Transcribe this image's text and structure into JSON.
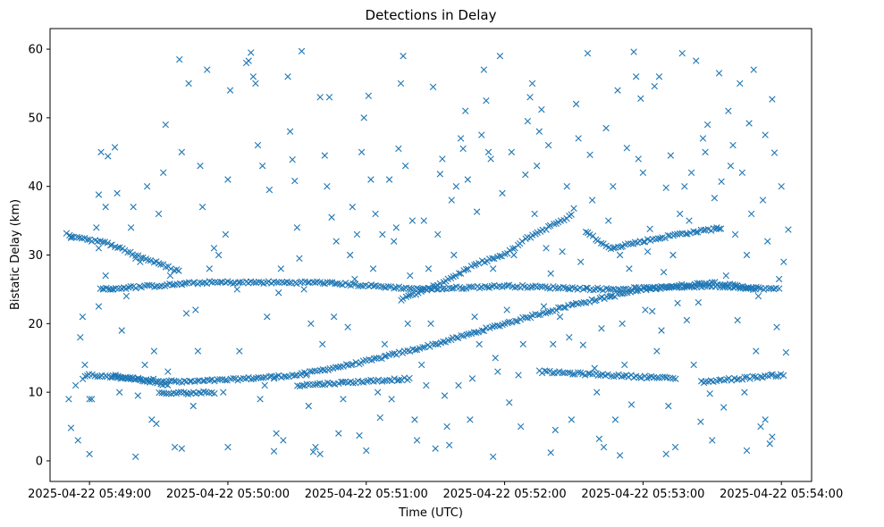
{
  "chart_data": {
    "type": "scatter",
    "title": "Detections in Delay",
    "xlabel": "Time (UTC)",
    "ylabel": "Bistatic Delay (km)",
    "marker": "x",
    "color": "#1f77b4",
    "x_unit": "seconds after 2025-04-22 05:49:00 UTC",
    "xlim": [
      -17.1,
      313.1
    ],
    "ylim": [
      -3,
      63
    ],
    "grid": false,
    "xticks": [
      {
        "value": 0,
        "label": "2025-04-22 05:49:00"
      },
      {
        "value": 60,
        "label": "2025-04-22 05:50:00"
      },
      {
        "value": 120,
        "label": "2025-04-22 05:51:00"
      },
      {
        "value": 180,
        "label": "2025-04-22 05:52:00"
      },
      {
        "value": 240,
        "label": "2025-04-22 05:53:00"
      },
      {
        "value": 300,
        "label": "2025-04-22 05:54:00"
      }
    ],
    "yticks": [
      {
        "value": 0,
        "label": "0"
      },
      {
        "value": 10,
        "label": "10"
      },
      {
        "value": 20,
        "label": "20"
      },
      {
        "value": 30,
        "label": "30"
      },
      {
        "value": 40,
        "label": "40"
      },
      {
        "value": 50,
        "label": "50"
      },
      {
        "value": 60,
        "label": "60"
      }
    ],
    "tracks": [
      {
        "name": "rising-track",
        "points": [
          [
            -3,
            12
          ],
          [
            0,
            12.5
          ],
          [
            10,
            12.2
          ],
          [
            40,
            11.5
          ],
          [
            60,
            11.8
          ],
          [
            90,
            12.5
          ],
          [
            120,
            14.5
          ],
          [
            150,
            17
          ],
          [
            180,
            20
          ],
          [
            210,
            22.8
          ],
          [
            240,
            25
          ],
          [
            270,
            26
          ],
          [
            290,
            25
          ]
        ]
      },
      {
        "name": "upper-rising-track",
        "points": [
          [
            135,
            23.5
          ],
          [
            150,
            25.5
          ],
          [
            170,
            29
          ],
          [
            180,
            30
          ],
          [
            190,
            32.5
          ],
          [
            210,
            36
          ]
        ]
      },
      {
        "name": "left-descending-track",
        "points": [
          [
            -10,
            33
          ],
          [
            10,
            31.5
          ],
          [
            20,
            30
          ],
          [
            40,
            27.5
          ]
        ]
      },
      {
        "name": "right-upper-track",
        "points": [
          [
            215,
            33.5
          ],
          [
            225,
            31
          ],
          [
            240,
            32
          ],
          [
            255,
            33
          ],
          [
            275,
            34
          ]
        ]
      },
      {
        "name": "mid-flat-track",
        "points": [
          [
            5,
            25
          ],
          [
            50,
            26
          ],
          [
            100,
            26
          ],
          [
            145,
            25
          ],
          [
            180,
            25.5
          ],
          [
            225,
            25
          ],
          [
            270,
            25.5
          ],
          [
            300,
            25
          ]
        ]
      },
      {
        "name": "low-left-track",
        "points": [
          [
            10,
            12.5
          ],
          [
            35,
            11
          ]
        ]
      },
      {
        "name": "low-flat-track",
        "points": [
          [
            30,
            9.8
          ],
          [
            55,
            10
          ]
        ]
      },
      {
        "name": "low-mid-track",
        "points": [
          [
            90,
            11
          ],
          [
            140,
            12
          ]
        ]
      },
      {
        "name": "low-right-track",
        "points": [
          [
            195,
            13
          ],
          [
            255,
            12
          ]
        ]
      },
      {
        "name": "low-far-right-track",
        "points": [
          [
            265,
            11.5
          ],
          [
            302,
            12.6
          ]
        ]
      }
    ],
    "scatter": [
      [
        -9,
        9
      ],
      [
        -8,
        32.5
      ],
      [
        -6,
        11
      ],
      [
        -4,
        18
      ],
      [
        -3,
        21
      ],
      [
        -2,
        14
      ],
      [
        0,
        9
      ],
      [
        1,
        9
      ],
      [
        3,
        34
      ],
      [
        4,
        22.5
      ],
      [
        4,
        31
      ],
      [
        4,
        38.8
      ],
      [
        5,
        45
      ],
      [
        6,
        25
      ],
      [
        7,
        27
      ],
      [
        7,
        37
      ],
      [
        8,
        44.4
      ],
      [
        10,
        25
      ],
      [
        11,
        45.7
      ],
      [
        12,
        39
      ],
      [
        13,
        10
      ],
      [
        14,
        19
      ],
      [
        16,
        24
      ],
      [
        18,
        34
      ],
      [
        19,
        37
      ],
      [
        20,
        29.5
      ],
      [
        21,
        9.5
      ],
      [
        22,
        29
      ],
      [
        24,
        14
      ],
      [
        25,
        40
      ],
      [
        27,
        6
      ],
      [
        28,
        16
      ],
      [
        29,
        5.4
      ],
      [
        30,
        36
      ],
      [
        32,
        42
      ],
      [
        33,
        49
      ],
      [
        34,
        13
      ],
      [
        35,
        27
      ],
      [
        37,
        2
      ],
      [
        39,
        58.5
      ],
      [
        40,
        45
      ],
      [
        42,
        21.5
      ],
      [
        43,
        55
      ],
      [
        45,
        8
      ],
      [
        46,
        22
      ],
      [
        47,
        16
      ],
      [
        48,
        43
      ],
      [
        49,
        37
      ],
      [
        51,
        57
      ],
      [
        52,
        28
      ],
      [
        54,
        31
      ],
      [
        56,
        30
      ],
      [
        58,
        10
      ],
      [
        59,
        33
      ],
      [
        60,
        41
      ],
      [
        61,
        54
      ],
      [
        64,
        25
      ],
      [
        65,
        16
      ],
      [
        68,
        58
      ],
      [
        69,
        58.3
      ],
      [
        70,
        59.5
      ],
      [
        71,
        56
      ],
      [
        72,
        55
      ],
      [
        73,
        46
      ],
      [
        74,
        9
      ],
      [
        75,
        43
      ],
      [
        76,
        11
      ],
      [
        77,
        21
      ],
      [
        78,
        39.5
      ],
      [
        80,
        12
      ],
      [
        81,
        4
      ],
      [
        82,
        24.5
      ],
      [
        83,
        28
      ],
      [
        84,
        3
      ],
      [
        86,
        56
      ],
      [
        87,
        48
      ],
      [
        88,
        43.9
      ],
      [
        89,
        40.8
      ],
      [
        90,
        34
      ],
      [
        91,
        29.5
      ],
      [
        92,
        59.7
      ],
      [
        93,
        25
      ],
      [
        94,
        12.5
      ],
      [
        95,
        8
      ],
      [
        96,
        20
      ],
      [
        97,
        1.3
      ],
      [
        98,
        2
      ],
      [
        100,
        53
      ],
      [
        101,
        17
      ],
      [
        102,
        44.5
      ],
      [
        103,
        40
      ],
      [
        104,
        53
      ],
      [
        105,
        35.5
      ],
      [
        106,
        21
      ],
      [
        107,
        32
      ],
      [
        108,
        4
      ],
      [
        110,
        9
      ],
      [
        112,
        19.5
      ],
      [
        113,
        30
      ],
      [
        114,
        37
      ],
      [
        115,
        26.5
      ],
      [
        116,
        33
      ],
      [
        117,
        3.7
      ],
      [
        118,
        45
      ],
      [
        119,
        50
      ],
      [
        121,
        53.2
      ],
      [
        122,
        41
      ],
      [
        123,
        28
      ],
      [
        124,
        36
      ],
      [
        125,
        10
      ],
      [
        126,
        6.3
      ],
      [
        127,
        33
      ],
      [
        128,
        17
      ],
      [
        130,
        41
      ],
      [
        131,
        9
      ],
      [
        132,
        32
      ],
      [
        133,
        34
      ],
      [
        134,
        45.5
      ],
      [
        135,
        55
      ],
      [
        136,
        59
      ],
      [
        137,
        43
      ],
      [
        138,
        20
      ],
      [
        139,
        27
      ],
      [
        140,
        35
      ],
      [
        141,
        6
      ],
      [
        142,
        3
      ],
      [
        144,
        14
      ],
      [
        145,
        35
      ],
      [
        146,
        11
      ],
      [
        147,
        28
      ],
      [
        148,
        20
      ],
      [
        149,
        54.5
      ],
      [
        150,
        17
      ],
      [
        151,
        33
      ],
      [
        152,
        41.8
      ],
      [
        153,
        44
      ],
      [
        154,
        9.5
      ],
      [
        155,
        5
      ],
      [
        156,
        2.3
      ],
      [
        157,
        38
      ],
      [
        158,
        30
      ],
      [
        159,
        40
      ],
      [
        160,
        11
      ],
      [
        161,
        47
      ],
      [
        162,
        45.5
      ],
      [
        163,
        51
      ],
      [
        164,
        41
      ],
      [
        165,
        6
      ],
      [
        166,
        12
      ],
      [
        167,
        21
      ],
      [
        168,
        36.3
      ],
      [
        169,
        17
      ],
      [
        170,
        47.5
      ],
      [
        171,
        57
      ],
      [
        172,
        52.5
      ],
      [
        173,
        45
      ],
      [
        174,
        44
      ],
      [
        175,
        28
      ],
      [
        176,
        15
      ],
      [
        177,
        13
      ],
      [
        178,
        59
      ],
      [
        179,
        39
      ],
      [
        181,
        22
      ],
      [
        182,
        8.5
      ],
      [
        183,
        45
      ],
      [
        184,
        30
      ],
      [
        186,
        12.5
      ],
      [
        187,
        5
      ],
      [
        188,
        17
      ],
      [
        189,
        41.7
      ],
      [
        190,
        49.5
      ],
      [
        191,
        53
      ],
      [
        192,
        55
      ],
      [
        193,
        36
      ],
      [
        194,
        43
      ],
      [
        195,
        48
      ],
      [
        196,
        51.2
      ],
      [
        197,
        22.5
      ],
      [
        198,
        31
      ],
      [
        199,
        46
      ],
      [
        200,
        27.3
      ],
      [
        201,
        17
      ],
      [
        202,
        4.5
      ],
      [
        204,
        21
      ],
      [
        205,
        30.5
      ],
      [
        207,
        40
      ],
      [
        208,
        18
      ],
      [
        209,
        6
      ],
      [
        210,
        36.8
      ],
      [
        211,
        52
      ],
      [
        212,
        47
      ],
      [
        213,
        29
      ],
      [
        214,
        16.9
      ],
      [
        216,
        59.4
      ],
      [
        217,
        44.6
      ],
      [
        218,
        38
      ],
      [
        219,
        13.5
      ],
      [
        220,
        10
      ],
      [
        221,
        3.2
      ],
      [
        222,
        19.3
      ],
      [
        223,
        2
      ],
      [
        224,
        48.5
      ],
      [
        225,
        35
      ],
      [
        226,
        24
      ],
      [
        227,
        40
      ],
      [
        228,
        6
      ],
      [
        229,
        54
      ],
      [
        230,
        30
      ],
      [
        231,
        20
      ],
      [
        232,
        14
      ],
      [
        233,
        45.6
      ],
      [
        234,
        28
      ],
      [
        235,
        8.2
      ],
      [
        236,
        59.6
      ],
      [
        237,
        56
      ],
      [
        238,
        44
      ],
      [
        239,
        52.8
      ],
      [
        240,
        42
      ],
      [
        241,
        22
      ],
      [
        242,
        30.5
      ],
      [
        243,
        33.8
      ],
      [
        244,
        21.8
      ],
      [
        245,
        54.6
      ],
      [
        246,
        16
      ],
      [
        247,
        56
      ],
      [
        248,
        19
      ],
      [
        249,
        27.5
      ],
      [
        250,
        39.8
      ],
      [
        251,
        8
      ],
      [
        252,
        44.5
      ],
      [
        253,
        30
      ],
      [
        254,
        2
      ],
      [
        255,
        23
      ],
      [
        256,
        36
      ],
      [
        257,
        59.4
      ],
      [
        258,
        40
      ],
      [
        259,
        20.5
      ],
      [
        260,
        35
      ],
      [
        261,
        42
      ],
      [
        262,
        14
      ],
      [
        263,
        58.3
      ],
      [
        264,
        23.1
      ],
      [
        265,
        5.7
      ],
      [
        266,
        47
      ],
      [
        267,
        45
      ],
      [
        268,
        49
      ],
      [
        269,
        9.8
      ],
      [
        270,
        26
      ],
      [
        271,
        38.3
      ],
      [
        272,
        34
      ],
      [
        273,
        56.5
      ],
      [
        274,
        40.7
      ],
      [
        275,
        7.8
      ],
      [
        276,
        27
      ],
      [
        277,
        51
      ],
      [
        278,
        43
      ],
      [
        279,
        46
      ],
      [
        280,
        33
      ],
      [
        281,
        20.5
      ],
      [
        282,
        55
      ],
      [
        283,
        42
      ],
      [
        284,
        10
      ],
      [
        285,
        30
      ],
      [
        286,
        49.2
      ],
      [
        287,
        36
      ],
      [
        288,
        57
      ],
      [
        289,
        16
      ],
      [
        290,
        24
      ],
      [
        291,
        5
      ],
      [
        292,
        38
      ],
      [
        293,
        47.5
      ],
      [
        294,
        32
      ],
      [
        295,
        2.5
      ],
      [
        296,
        52.7
      ],
      [
        297,
        44.9
      ],
      [
        298,
        19.5
      ],
      [
        299,
        26.5
      ],
      [
        300,
        40
      ],
      [
        301,
        29
      ],
      [
        302,
        15.8
      ],
      [
        303,
        33.7
      ],
      [
        293,
        6
      ],
      [
        296,
        3.5
      ],
      [
        285,
        1.5
      ],
      [
        270,
        3
      ],
      [
        250,
        1
      ],
      [
        230,
        0.8
      ],
      [
        200,
        1.2
      ],
      [
        175,
        0.6
      ],
      [
        150,
        1.8
      ],
      [
        120,
        1.5
      ],
      [
        100,
        1
      ],
      [
        80,
        1.4
      ],
      [
        60,
        2
      ],
      [
        40,
        1.8
      ],
      [
        20,
        0.6
      ],
      [
        0,
        1
      ],
      [
        -5,
        3
      ],
      [
        -8,
        4.8
      ]
    ]
  }
}
